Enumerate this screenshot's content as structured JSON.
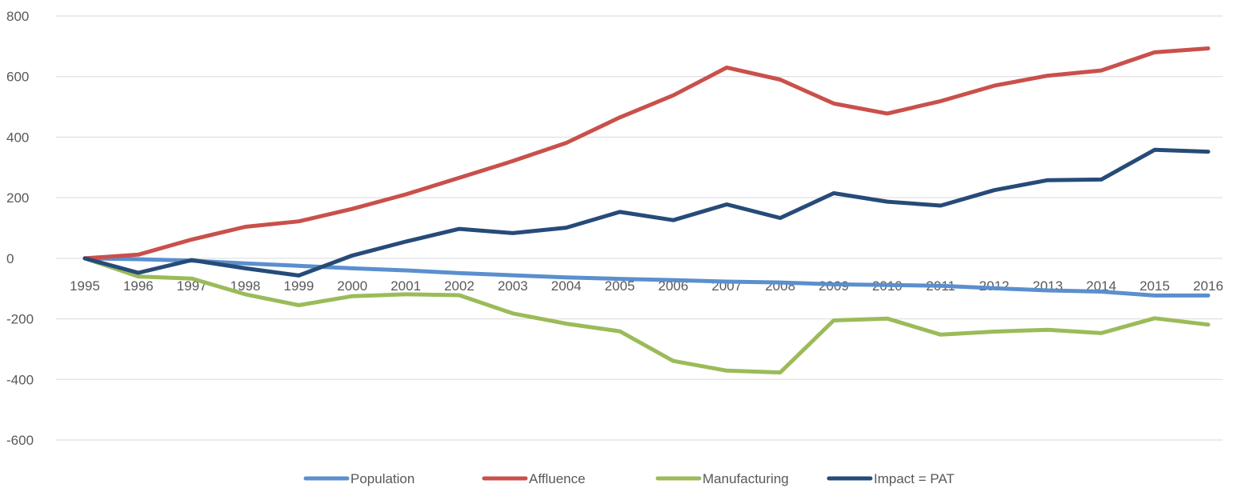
{
  "chart_data": {
    "type": "line",
    "title": "",
    "xlabel": "",
    "ylabel": "",
    "ylim": [
      -600,
      800
    ],
    "yticks": [
      -600,
      -400,
      -200,
      0,
      200,
      400,
      600,
      800
    ],
    "categories": [
      "1995",
      "1996",
      "1997",
      "1998",
      "1999",
      "2000",
      "2001",
      "2002",
      "2003",
      "2004",
      "2005",
      "2006",
      "2007",
      "2008",
      "2009",
      "2010",
      "2011",
      "2012",
      "2013",
      "2014",
      "2015",
      "2016"
    ],
    "grid": true,
    "legend_position": "bottom",
    "series": [
      {
        "name": "Population",
        "color": "#5b8fce",
        "values": [
          0,
          -3,
          -8,
          -17,
          -25,
          -33,
          -40,
          -49,
          -56,
          -63,
          -68,
          -72,
          -77,
          -80,
          -86,
          -88,
          -91,
          -99,
          -106,
          -110,
          -123,
          -123
        ]
      },
      {
        "name": "Affluence",
        "color": "#c9504b",
        "values": [
          0,
          12,
          62,
          104,
          122,
          163,
          211,
          266,
          321,
          381,
          465,
          538,
          630,
          590,
          511,
          478,
          519,
          570,
          603,
          620,
          680,
          693
        ]
      },
      {
        "name": "Manufacturing",
        "color": "#9bbb59",
        "values": [
          0,
          -60,
          -67,
          -119,
          -155,
          -125,
          -119,
          -122,
          -182,
          -216,
          -241,
          -339,
          -371,
          -377,
          -205,
          -199,
          -252,
          -242,
          -236,
          -247,
          -198,
          -219
        ]
      },
      {
        "name": "Impact = PAT",
        "color": "#264b78",
        "values": [
          0,
          -48,
          -6,
          -33,
          -57,
          9,
          55,
          97,
          83,
          101,
          153,
          126,
          178,
          133,
          215,
          187,
          174,
          225,
          258,
          260,
          358,
          352
        ]
      }
    ]
  }
}
